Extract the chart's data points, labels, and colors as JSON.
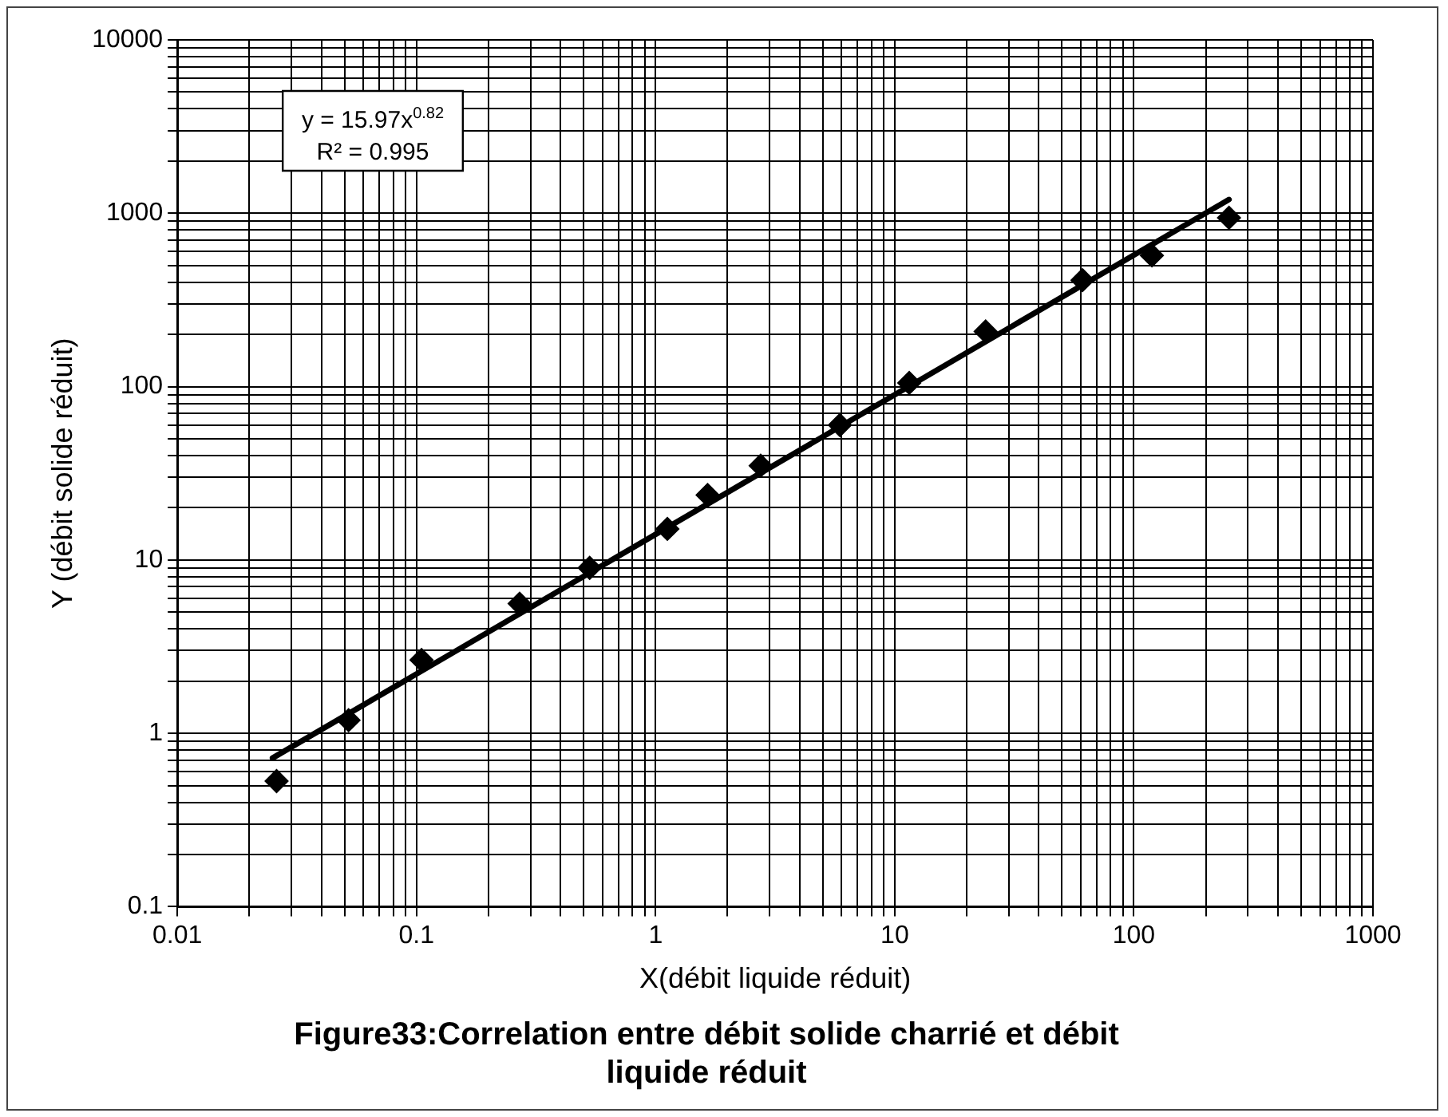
{
  "chart_data": {
    "type": "scatter",
    "title": "Figure33:Correlation entre débit solide charrié et débit liquide réduit",
    "xlabel": "X(débit liquide réduit)",
    "ylabel": "Y (débit solide réduit)",
    "log": "xy",
    "grid": true,
    "legend": false,
    "marker": "diamond",
    "xlim": [
      0.01,
      1000
    ],
    "ylim": [
      0.1,
      10000
    ],
    "xticks": [
      0.01,
      {
        "value": 0.02,
        "label": null
      },
      {
        "value": 0.03,
        "label": null
      },
      {
        "value": 0.04,
        "label": null
      },
      {
        "value": 0.05,
        "label": null
      },
      {
        "value": 0.06,
        "label": null
      },
      {
        "value": 0.07,
        "label": null
      },
      {
        "value": 0.08,
        "label": null
      },
      {
        "value": 0.09,
        "label": null
      },
      0.1,
      {
        "value": 0.2,
        "label": null
      },
      {
        "value": 0.3,
        "label": null
      },
      {
        "value": 0.4,
        "label": null
      },
      {
        "value": 0.5,
        "label": null
      },
      {
        "value": 0.6,
        "label": null
      },
      {
        "value": 0.7,
        "label": null
      },
      {
        "value": 0.8,
        "label": null
      },
      {
        "value": 0.9,
        "label": null
      },
      1,
      {
        "value": 2,
        "label": null
      },
      {
        "value": 3,
        "label": null
      },
      {
        "value": 4,
        "label": null
      },
      {
        "value": 5,
        "label": null
      },
      {
        "value": 6,
        "label": null
      },
      {
        "value": 7,
        "label": null
      },
      {
        "value": 8,
        "label": null
      },
      {
        "value": 9,
        "label": null
      },
      10,
      {
        "value": 20,
        "label": null
      },
      {
        "value": 30,
        "label": null
      },
      {
        "value": 40,
        "label": null
      },
      {
        "value": 50,
        "label": null
      },
      {
        "value": 60,
        "label": null
      },
      {
        "value": 70,
        "label": null
      },
      {
        "value": 80,
        "label": null
      },
      {
        "value": 90,
        "label": null
      },
      100,
      {
        "value": 200,
        "label": null
      },
      {
        "value": 300,
        "label": null
      },
      {
        "value": 400,
        "label": null
      },
      {
        "value": 500,
        "label": null
      },
      {
        "value": 600,
        "label": null
      },
      {
        "value": 700,
        "label": null
      },
      {
        "value": 800,
        "label": null
      },
      {
        "value": 900,
        "label": null
      },
      1000
    ],
    "yticks": [
      0.1,
      {
        "value": 0.2,
        "label": null
      },
      {
        "value": 0.3,
        "label": null
      },
      {
        "value": 0.4,
        "label": null
      },
      {
        "value": 0.5,
        "label": null
      },
      {
        "value": 0.6,
        "label": null
      },
      {
        "value": 0.7,
        "label": null
      },
      {
        "value": 0.8,
        "label": null
      },
      {
        "value": 0.9,
        "label": null
      },
      1,
      {
        "value": 2,
        "label": null
      },
      {
        "value": 3,
        "label": null
      },
      {
        "value": 4,
        "label": null
      },
      {
        "value": 5,
        "label": null
      },
      {
        "value": 6,
        "label": null
      },
      {
        "value": 7,
        "label": null
      },
      {
        "value": 8,
        "label": null
      },
      {
        "value": 9,
        "label": null
      },
      10,
      {
        "value": 20,
        "label": null
      },
      {
        "value": 30,
        "label": null
      },
      {
        "value": 40,
        "label": null
      },
      {
        "value": 50,
        "label": null
      },
      {
        "value": 60,
        "label": null
      },
      {
        "value": 70,
        "label": null
      },
      {
        "value": 80,
        "label": null
      },
      {
        "value": 90,
        "label": null
      },
      100,
      {
        "value": 200,
        "label": null
      },
      {
        "value": 300,
        "label": null
      },
      {
        "value": 400,
        "label": null
      },
      {
        "value": 500,
        "label": null
      },
      {
        "value": 600,
        "label": null
      },
      {
        "value": 700,
        "label": null
      },
      {
        "value": 800,
        "label": null
      },
      {
        "value": 900,
        "label": null
      },
      1000,
      {
        "value": 2000,
        "label": null
      },
      {
        "value": 3000,
        "label": null
      },
      {
        "value": 4000,
        "label": null
      },
      {
        "value": 5000,
        "label": null
      },
      {
        "value": 6000,
        "label": null
      },
      {
        "value": 7000,
        "label": null
      },
      {
        "value": 8000,
        "label": null
      },
      {
        "value": 9000,
        "label": null
      },
      10000
    ],
    "annotations": [
      "y = 15.97x$^{0.82}$",
      "R² = 0.995"
    ],
    "series": [
      {
        "type": "scatter",
        "color": "#000000",
        "x": [
          0.026,
          0.052,
          0.105,
          0.27,
          0.53,
          1.12,
          1.65,
          2.75,
          5.9,
          11.5,
          24,
          61,
          119,
          250
        ],
        "values": [
          0.53,
          1.19,
          2.65,
          5.6,
          9.0,
          15.1,
          23.7,
          35,
          60,
          105,
          208,
          411,
          571,
          942
        ]
      },
      {
        "type": "line",
        "color": "#000000",
        "marker": "none",
        "x": [
          0.025,
          250
        ],
        "values": [
          0.72,
          1200
        ]
      }
    ]
  }
}
